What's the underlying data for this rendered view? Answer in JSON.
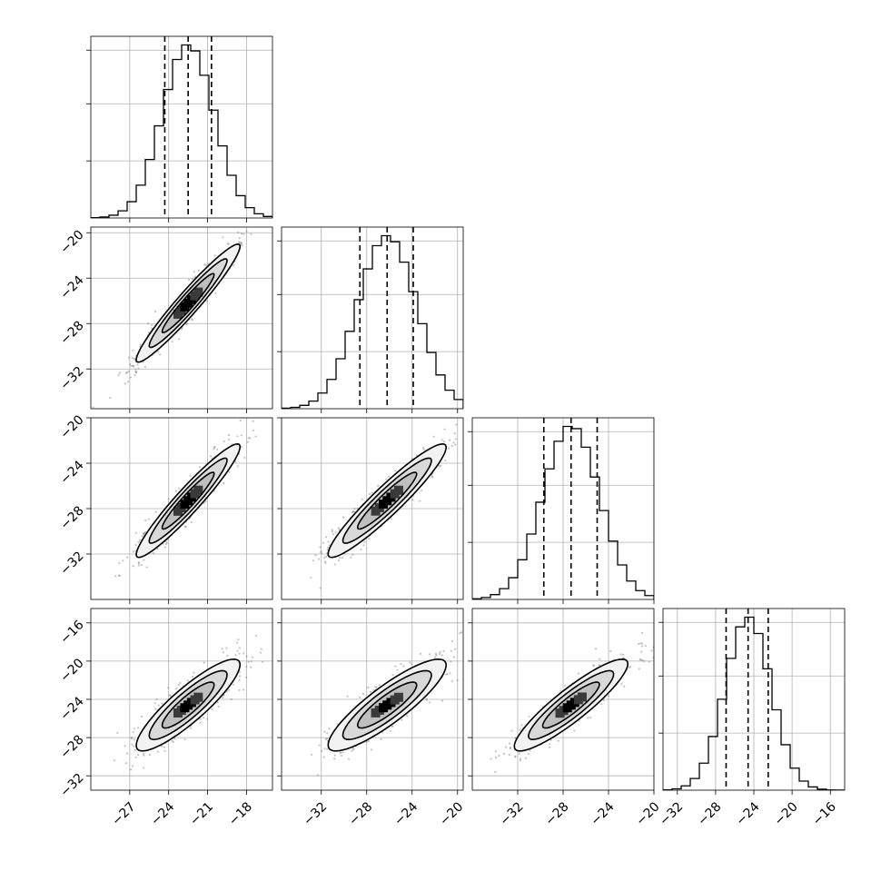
{
  "chart_data": {
    "type": "corner",
    "n_params": 4,
    "colors": {
      "line": "#000000",
      "points": "#7a7a7a",
      "grid": "#b0b0b0",
      "contour_fill_outer": "#f2f2f2",
      "contour_fill_inner": "#bfbfbf",
      "density_core": "#000000"
    },
    "params": [
      {
        "mean": -22.5,
        "sd": 2.0,
        "range": [
          -30,
          -16
        ],
        "ticks": [
          -27,
          -24,
          -21,
          -18
        ],
        "tick_labels": [
          "−27",
          "−24",
          "−21",
          "−18"
        ],
        "quantiles": [
          -24.3,
          -22.5,
          -20.7
        ]
      },
      {
        "mean": -26.2,
        "sd": 2.6,
        "range": [
          -35.5,
          -19.5
        ],
        "ticks": [
          -32,
          -28,
          -24,
          -20
        ],
        "tick_labels": [
          "−32",
          "−28",
          "−24",
          "−20"
        ],
        "quantiles": [
          -28.6,
          -26.2,
          -23.9
        ]
      },
      {
        "mean": -27.3,
        "sd": 2.5,
        "range": [
          -36,
          -20
        ],
        "ticks": [
          -32,
          -28,
          -24,
          -20
        ],
        "tick_labels": [
          "−32",
          "−28",
          "−24",
          "−20"
        ],
        "quantiles": [
          -29.7,
          -27.3,
          -25.0
        ]
      },
      {
        "mean": -24.6,
        "sd": 2.4,
        "range": [
          -33.5,
          -14.5
        ],
        "ticks": [
          -32,
          -28,
          -24,
          -20,
          -16
        ],
        "tick_labels": [
          "−32",
          "−28",
          "−24",
          "−20",
          "−16"
        ],
        "quantiles": [
          -26.9,
          -24.6,
          -22.5
        ]
      }
    ],
    "correlations": [
      [
        1.0,
        0.96,
        0.95,
        0.88
      ],
      [
        0.96,
        1.0,
        0.94,
        0.87
      ],
      [
        0.95,
        0.94,
        1.0,
        0.9
      ],
      [
        0.88,
        0.87,
        0.9,
        1.0
      ]
    ],
    "contour_levels_sigma": [
      0.5,
      1.0,
      1.5,
      2.0
    ],
    "grid": true,
    "legend": "none"
  }
}
